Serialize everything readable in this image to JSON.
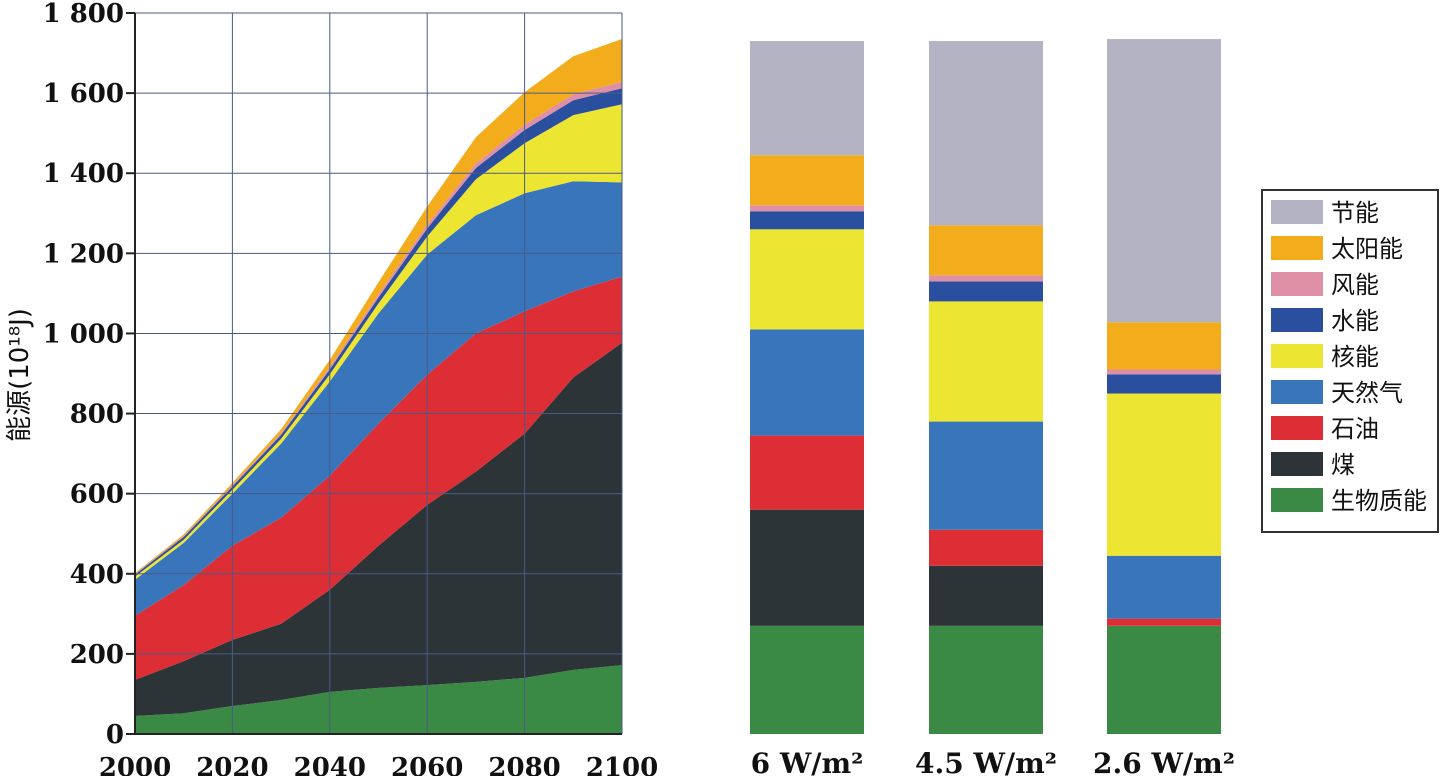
{
  "colors": {
    "节能": "#b3b3c3",
    "太阳能": "#f2ac1c",
    "风能": "#df8fa6",
    "水能": "#2a4f9f",
    "核能": "#ece532",
    "天然气": "#3975ba",
    "石油": "#dd2e35",
    "煤": "#2c3437",
    "生物质能": "#3a8a46"
  },
  "ylabel": "能源(10¹⁸J)",
  "legend": {
    "order": [
      "节能",
      "太阳能",
      "风能",
      "水能",
      "核能",
      "天然气",
      "石油",
      "煤",
      "生物质能"
    ]
  },
  "chart_data": [
    {
      "type": "area",
      "stacked": true,
      "x": [
        2000,
        2010,
        2020,
        2030,
        2040,
        2050,
        2060,
        2070,
        2080,
        2090,
        2100
      ],
      "xticks": [
        "2000",
        "2020",
        "2040",
        "2060",
        "2080",
        "2100"
      ],
      "xlim": [
        2000,
        2100
      ],
      "ylim": [
        0,
        1800
      ],
      "yticks": [
        "0",
        "200",
        "400",
        "600",
        "800",
        "1 000",
        "1 200",
        "1 400",
        "1 600",
        "1 800"
      ],
      "grid": true,
      "series": [
        {
          "name": "生物质能",
          "values": [
            45,
            52,
            70,
            85,
            105,
            115,
            122,
            130,
            140,
            160,
            172
          ]
        },
        {
          "name": "煤",
          "values": [
            90,
            130,
            165,
            190,
            255,
            355,
            450,
            525,
            610,
            730,
            805
          ]
        },
        {
          "name": "石油",
          "values": [
            160,
            190,
            235,
            265,
            285,
            305,
            325,
            345,
            305,
            215,
            165
          ]
        },
        {
          "name": "天然气",
          "values": [
            90,
            105,
            130,
            185,
            235,
            275,
            300,
            295,
            295,
            275,
            235
          ]
        },
        {
          "name": "核能",
          "values": [
            8,
            8,
            10,
            12,
            18,
            25,
            45,
            90,
            125,
            165,
            195
          ]
        },
        {
          "name": "水能",
          "values": [
            5,
            7,
            8,
            10,
            12,
            15,
            20,
            28,
            33,
            37,
            40
          ]
        },
        {
          "name": "风能",
          "values": [
            2,
            2,
            3,
            4,
            6,
            8,
            10,
            12,
            14,
            15,
            16
          ]
        },
        {
          "name": "太阳能",
          "values": [
            2,
            4,
            6,
            10,
            18,
            30,
            45,
            65,
            80,
            95,
            107
          ]
        }
      ]
    },
    {
      "type": "bar",
      "stacked": true,
      "categories": [
        "6 W/m²",
        "4.5 W/m²",
        "2.6 W/m²"
      ],
      "series": [
        {
          "name": "生物质能",
          "values": [
            270,
            270,
            270
          ]
        },
        {
          "name": "煤",
          "values": [
            290,
            150,
            0
          ]
        },
        {
          "name": "石油",
          "values": [
            185,
            90,
            18
          ]
        },
        {
          "name": "天然气",
          "values": [
            265,
            270,
            157
          ]
        },
        {
          "name": "核能",
          "values": [
            250,
            300,
            405
          ]
        },
        {
          "name": "水能",
          "values": [
            45,
            50,
            48
          ]
        },
        {
          "name": "风能",
          "values": [
            15,
            15,
            12
          ]
        },
        {
          "name": "太阳能",
          "values": [
            125,
            125,
            118
          ]
        },
        {
          "name": "节能",
          "values": [
            285,
            460,
            707
          ]
        }
      ]
    }
  ]
}
